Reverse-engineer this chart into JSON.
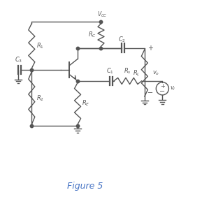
{
  "title": "Figure 5",
  "title_color": "#4472C4",
  "background_color": "#ffffff",
  "line_color": "#555555",
  "label_color": "#555555",
  "figsize": [
    2.89,
    2.92
  ],
  "dpi": 100,
  "vcc_label": "$V_{CC}$",
  "r1_label": "$R_1$",
  "r2_label": "$R_2$",
  "rc_label": "$R_C$",
  "re_label": "$R_E$",
  "rl_label": "$R_L$",
  "rs_label": "$R_s$",
  "c1_label": "$C_1$",
  "c2_label": "$C_2$",
  "c3_label": "$C_3$",
  "vo_label": "$v_o$",
  "vi_label": "$v_i$"
}
